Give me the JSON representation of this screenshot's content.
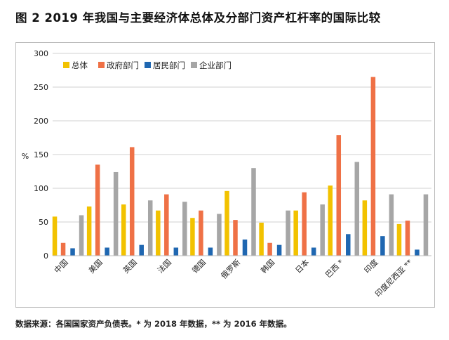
{
  "title": "图 2  2019 年我国与主要经济体总体及分部门资产杠杆率的国际比较",
  "source": "数据来源：各国国家资产负债表。* 为 2018 年数据，** 为 2016 年数据。",
  "chart_data": {
    "type": "bar",
    "ylabel": "%",
    "xlabel": "",
    "ylim": [
      0,
      300
    ],
    "yticks": [
      0,
      50,
      100,
      150,
      200,
      250,
      300
    ],
    "grid": true,
    "legend_position": "top-left",
    "categories": [
      "中国",
      "美国",
      "英国",
      "法国",
      "德国",
      "俄罗斯",
      "韩国",
      "日本",
      "巴西 *",
      "印度",
      "印度尼西亚 **"
    ],
    "series": [
      {
        "name": "总体",
        "color": "#f2c200",
        "values": [
          58,
          73,
          76,
          67,
          56,
          96,
          49,
          67,
          104,
          82,
          47
        ]
      },
      {
        "name": "政府部门",
        "color": "#ef7146",
        "values": [
          19,
          135,
          161,
          91,
          67,
          53,
          19,
          94,
          179,
          265,
          52
        ]
      },
      {
        "name": "居民部门",
        "color": "#1f67b1",
        "values": [
          11,
          12,
          16,
          12,
          12,
          24,
          16,
          12,
          32,
          29,
          9
        ]
      },
      {
        "name": "企业部门",
        "color": "#a6a6a6",
        "values": [
          60,
          124,
          82,
          80,
          62,
          130,
          67,
          76,
          139,
          91,
          91
        ]
      }
    ]
  }
}
